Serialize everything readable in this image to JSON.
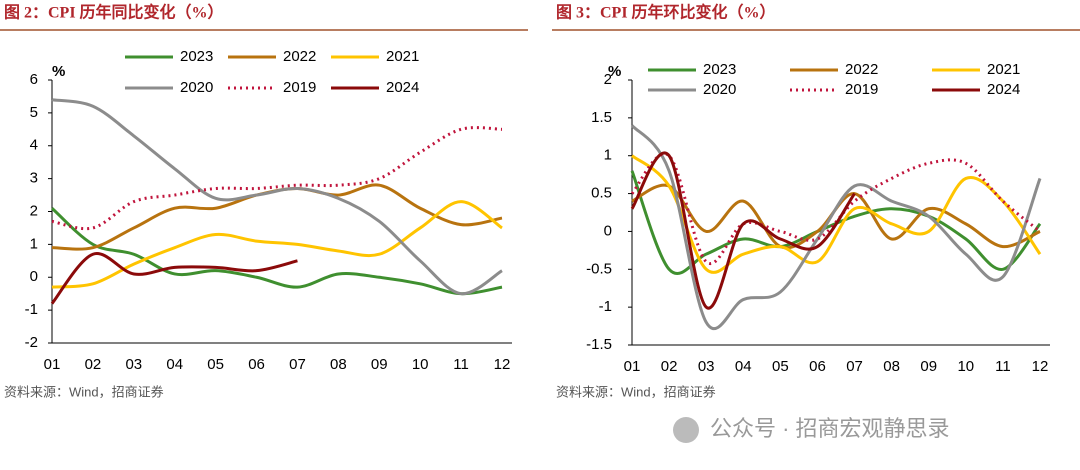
{
  "chart_data": [
    {
      "type": "line",
      "title": "图 2：CPI 历年同比变化（%）",
      "y_label": "%",
      "source": "资料来源：Wind，招商证券",
      "categories": [
        "01",
        "02",
        "03",
        "04",
        "05",
        "06",
        "07",
        "08",
        "09",
        "10",
        "11",
        "12"
      ],
      "ylim": [
        -2,
        6
      ],
      "yticks": [
        -2,
        -1,
        0,
        1,
        2,
        3,
        4,
        5,
        6
      ],
      "series": [
        {
          "name": "2023",
          "color": "#3f8f2f",
          "values": [
            2.1,
            1.0,
            0.7,
            0.1,
            0.2,
            0.0,
            -0.3,
            0.1,
            0.0,
            -0.2,
            -0.5,
            -0.3
          ]
        },
        {
          "name": "2022",
          "color": "#b8730f",
          "values": [
            0.9,
            0.9,
            1.5,
            2.1,
            2.1,
            2.5,
            2.7,
            2.5,
            2.8,
            2.1,
            1.6,
            1.8
          ]
        },
        {
          "name": "2021",
          "color": "#ffc400",
          "values": [
            -0.3,
            -0.2,
            0.4,
            0.9,
            1.3,
            1.1,
            1.0,
            0.8,
            0.7,
            1.5,
            2.3,
            1.5
          ]
        },
        {
          "name": "2020",
          "color": "#8c8c8c",
          "values": [
            5.4,
            5.2,
            4.3,
            3.3,
            2.4,
            2.5,
            2.7,
            2.4,
            1.7,
            0.5,
            -0.5,
            0.2
          ]
        },
        {
          "name": "2019",
          "color": "#c0143c",
          "style": "dotted",
          "values": [
            1.7,
            1.5,
            2.3,
            2.5,
            2.7,
            2.7,
            2.8,
            2.8,
            3.0,
            3.8,
            4.5,
            4.5
          ]
        },
        {
          "name": "2024",
          "color": "#8b0a0a",
          "values": [
            -0.8,
            0.7,
            0.1,
            0.3,
            0.3,
            0.2,
            0.5,
            null,
            null,
            null,
            null,
            null
          ]
        }
      ]
    },
    {
      "type": "line",
      "title": "图 3：CPI 历年环比变化（%）",
      "y_label": "%",
      "source": "资料来源：Wind，招商证券",
      "categories": [
        "01",
        "02",
        "03",
        "04",
        "05",
        "06",
        "07",
        "08",
        "09",
        "10",
        "11",
        "12"
      ],
      "ylim": [
        -1.5,
        2
      ],
      "yticks": [
        -1.5,
        -1,
        -0.5,
        0,
        0.5,
        1,
        1.5,
        2
      ],
      "series": [
        {
          "name": "2023",
          "color": "#3f8f2f",
          "values": [
            0.8,
            -0.5,
            -0.3,
            -0.1,
            -0.2,
            0.0,
            0.2,
            0.3,
            0.2,
            -0.1,
            -0.5,
            0.1
          ]
        },
        {
          "name": "2022",
          "color": "#b8730f",
          "values": [
            0.4,
            0.6,
            0.0,
            0.4,
            -0.2,
            0.0,
            0.5,
            -0.1,
            0.3,
            0.1,
            -0.2,
            0.0
          ]
        },
        {
          "name": "2021",
          "color": "#ffc400",
          "values": [
            1.0,
            0.6,
            -0.5,
            -0.3,
            -0.2,
            -0.4,
            0.3,
            0.1,
            0.0,
            0.7,
            0.4,
            -0.3
          ]
        },
        {
          "name": "2020",
          "color": "#8c8c8c",
          "values": [
            1.4,
            0.8,
            -1.2,
            -0.9,
            -0.8,
            -0.1,
            0.6,
            0.4,
            0.2,
            -0.3,
            -0.6,
            0.7
          ]
        },
        {
          "name": "2019",
          "color": "#c0143c",
          "style": "dotted",
          "values": [
            0.5,
            1.0,
            -0.4,
            0.1,
            0.0,
            -0.1,
            0.4,
            0.7,
            0.9,
            0.9,
            0.4,
            0.0
          ]
        },
        {
          "name": "2024",
          "color": "#8b0a0a",
          "values": [
            0.3,
            1.0,
            -1.0,
            0.1,
            -0.1,
            -0.2,
            0.5,
            null,
            null,
            null,
            null,
            null
          ]
        }
      ]
    }
  ],
  "watermark": "公众号 · 招商宏观静思录"
}
